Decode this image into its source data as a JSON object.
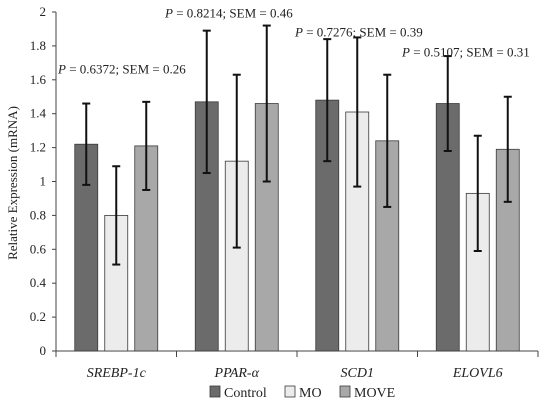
{
  "chart_data": {
    "type": "bar",
    "ylabel": "Relative Expression (mRNA)",
    "xlabel": "",
    "ylim": [
      0,
      2
    ],
    "yticks": [
      "0",
      "0.2",
      "0.4",
      "0.6",
      "0.8",
      "1",
      "1.2",
      "1.4",
      "1.6",
      "1.8",
      "2"
    ],
    "categories": [
      "SREBP-1c",
      "PPAR-α",
      "SCD1",
      "ELOVL6"
    ],
    "series": [
      {
        "name": "Control",
        "color": "#6b6b6b",
        "values": [
          1.22,
          1.47,
          1.48,
          1.46
        ],
        "errors": [
          0.24,
          0.42,
          0.36,
          0.28
        ]
      },
      {
        "name": "MO",
        "color": "#ececec",
        "values": [
          0.8,
          1.12,
          1.41,
          0.93
        ],
        "errors": [
          0.29,
          0.51,
          0.44,
          0.34
        ]
      },
      {
        "name": "MOVE",
        "color": "#a8a8a8",
        "values": [
          1.21,
          1.46,
          1.24,
          1.19
        ],
        "errors": [
          0.26,
          0.46,
          0.39,
          0.31
        ]
      }
    ],
    "annotations": [
      {
        "category": "SREBP-1c",
        "p_label": "P",
        "text": " = 0.6372; SEM = 0.26",
        "y": 1.66
      },
      {
        "category": "PPAR-α",
        "p_label": "P",
        "text": " = 0.8214; SEM = 0.46",
        "y": 1.99
      },
      {
        "category": "SCD1",
        "p_label": "P",
        "text": " = 0.7276; SEM = 0.39",
        "y": 1.88
      },
      {
        "category": "ELOVL6",
        "p_label": "P",
        "text": " = 0.5107; SEM = 0.31",
        "y": 1.76
      }
    ],
    "legend_position": "bottom",
    "grid": false
  }
}
